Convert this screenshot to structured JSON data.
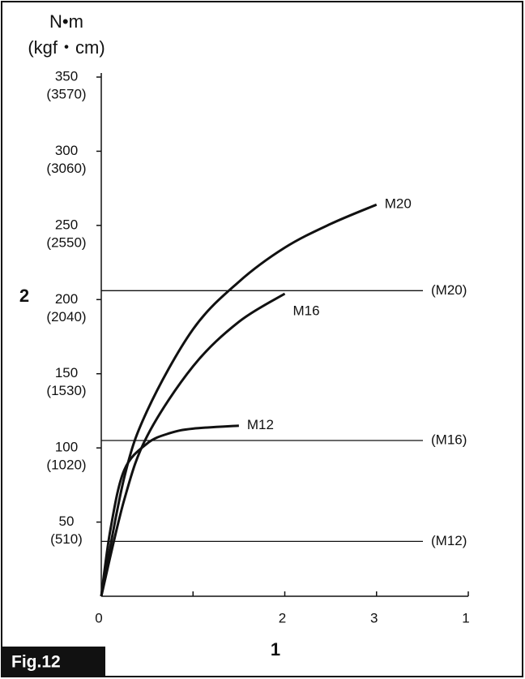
{
  "chart_data": {
    "type": "line",
    "y_label": "N•m",
    "y_label_secondary": "(kgf・cm)",
    "xlim": [
      0,
      4
    ],
    "xticks": [
      0,
      1,
      2,
      3,
      4
    ],
    "xtick_labels": [
      "0",
      null,
      "2",
      "3",
      "1"
    ],
    "ylim": [
      0,
      350
    ],
    "yticks": [
      50,
      100,
      150,
      200,
      250,
      300,
      350
    ],
    "ytick_secondary_labels": [
      "(510)",
      "(1020)",
      "(1530)",
      "(2040)",
      "(2550)",
      "(3060)",
      "(3570)"
    ],
    "series": [
      {
        "name": "M20",
        "color": "#111111",
        "x": [
          0,
          0.25,
          0.5,
          1,
          1.5,
          2,
          2.5,
          3
        ],
        "values": [
          0,
          80,
          125,
          180,
          212,
          235,
          251,
          264
        ]
      },
      {
        "name": "M16",
        "color": "#111111",
        "x": [
          0,
          0.25,
          0.5,
          1,
          1.5,
          2
        ],
        "values": [
          0,
          65,
          108,
          155,
          185,
          204
        ]
      },
      {
        "name": "M12",
        "color": "#111111",
        "x": [
          0,
          0.1,
          0.25,
          0.5,
          0.75,
          1,
          1.5
        ],
        "values": [
          0,
          45,
          85,
          103,
          110,
          113,
          115
        ]
      }
    ],
    "reference_lines": [
      {
        "name": "(M20)",
        "value": 206
      },
      {
        "name": "(M16)",
        "value": 105
      },
      {
        "name": "(M12)",
        "value": 37
      }
    ],
    "callouts": {
      "y_axis": "2",
      "x_axis": "1"
    },
    "figure_label": "Fig.12"
  }
}
